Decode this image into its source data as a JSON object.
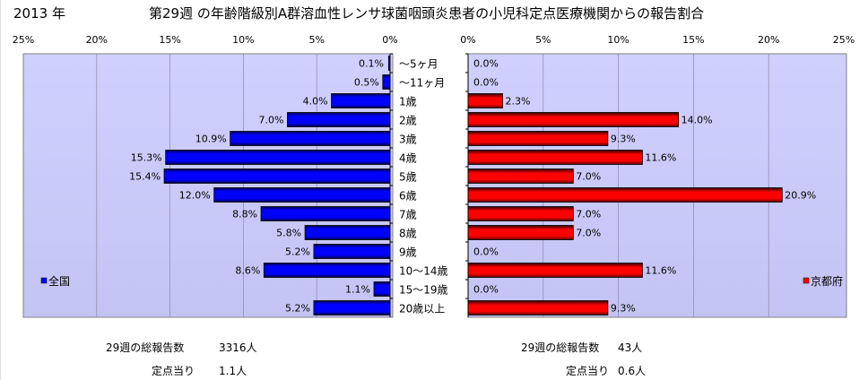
{
  "header": {
    "year": "2013 年",
    "title": "第29週 の年齢階級別A群溶血性レンサ球菌咽頭炎患者の小児科定点医療機関からの報告割合"
  },
  "chart_data": [
    {
      "type": "bar",
      "orientation": "horizontal-reversed",
      "legend": "全国",
      "legend_placement": "bottom-left",
      "color": "#0000ff",
      "xlim": [
        0,
        25
      ],
      "ticks": [
        "25%",
        "20%",
        "15%",
        "10%",
        "5%",
        "0%"
      ],
      "grid": true,
      "categories": [
        "～5ヶ月",
        "～11ヶ月",
        "1歳",
        "2歳",
        "3歳",
        "4歳",
        "5歳",
        "6歳",
        "7歳",
        "8歳",
        "9歳",
        "10～14歳",
        "15～19歳",
        "20歳以上"
      ],
      "values": [
        0.1,
        0.5,
        4.0,
        7.0,
        10.9,
        15.3,
        15.4,
        12.0,
        8.8,
        5.8,
        5.2,
        8.6,
        1.1,
        5.2
      ],
      "labels": [
        "0.1%",
        "0.5%",
        "4.0%",
        "7.0%",
        "10.9%",
        "15.3%",
        "15.4%",
        "12.0%",
        "8.8%",
        "5.8%",
        "5.2%",
        "8.6%",
        "1.1%",
        "5.2%"
      ]
    },
    {
      "type": "bar",
      "orientation": "horizontal",
      "legend": "京都府",
      "legend_placement": "bottom-right",
      "color": "#ff0000",
      "xlim": [
        0,
        25
      ],
      "ticks": [
        "0%",
        "5%",
        "10%",
        "15%",
        "20%",
        "25%"
      ],
      "grid": true,
      "categories": [
        "～5ヶ月",
        "～11ヶ月",
        "1歳",
        "2歳",
        "3歳",
        "4歳",
        "5歳",
        "6歳",
        "7歳",
        "8歳",
        "9歳",
        "10～14歳",
        "15～19歳",
        "20歳以上"
      ],
      "values": [
        0.0,
        0.0,
        2.3,
        14.0,
        9.3,
        11.6,
        7.0,
        20.9,
        7.0,
        7.0,
        0.0,
        11.6,
        0.0,
        9.3
      ],
      "labels": [
        "0.0%",
        "0.0%",
        "2.3%",
        "14.0%",
        "9.3%",
        "11.6%",
        "7.0%",
        "20.9%",
        "7.0%",
        "7.0%",
        "0.0%",
        "11.6%",
        "0.0%",
        "9.3%"
      ]
    }
  ],
  "footer": {
    "national": {
      "total_label": "29週の総報告数",
      "total_value": "3316人",
      "per_label": "定点当り",
      "per_value": "1.1人"
    },
    "kyoto": {
      "total_label": "29週の総報告数",
      "total_value": "43人",
      "per_label": "定点当り",
      "per_value": "0.6人"
    }
  }
}
